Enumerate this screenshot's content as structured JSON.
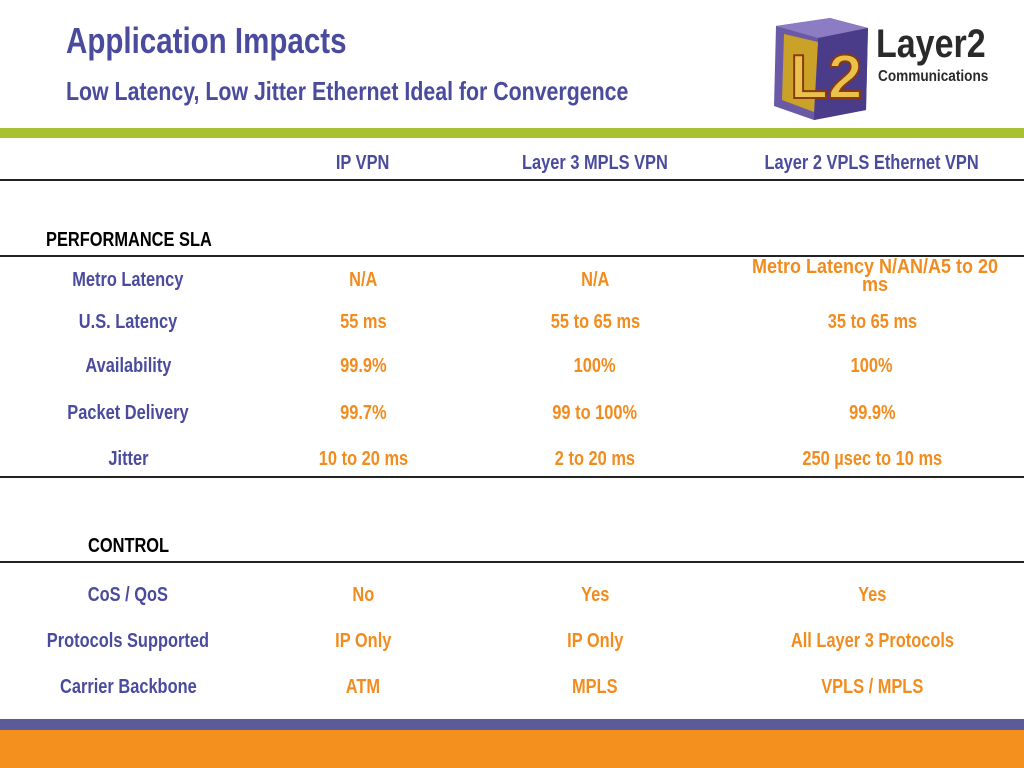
{
  "header": {
    "title": "Application Impacts",
    "subtitle": "Low Latency, Low Jitter Ethernet Ideal for Convergence"
  },
  "logo": {
    "mark": "L2",
    "word": "Layer2",
    "sub": "Communications"
  },
  "table": {
    "columns": [
      "",
      "IP VPN",
      "Layer 3 MPLS VPN",
      "Layer 2 VPLS Ethernet VPN"
    ],
    "sections": [
      {
        "heading": "PERFORMANCE SLA",
        "rows": [
          {
            "label": "Metro Latency",
            "values": [
              "N/A",
              "N/A",
              "Metro Latency N/AN/A5 to 20 ms"
            ]
          },
          {
            "label": "U.S. Latency",
            "values": [
              "55 ms",
              "55 to 65 ms",
              "35 to 65 ms"
            ]
          },
          {
            "label": "Availability",
            "values": [
              "99.9%",
              "100%",
              "100%"
            ]
          },
          {
            "label": "Packet Delivery",
            "values": [
              "99.7%",
              "99 to 100%",
              "99.9%"
            ]
          },
          {
            "label": "Jitter",
            "values": [
              "10 to 20 ms",
              "2 to 20 ms",
              "250 µsec to 10 ms"
            ]
          }
        ]
      },
      {
        "heading": "CONTROL",
        "rows": [
          {
            "label": "CoS / QoS",
            "values": [
              "No",
              "Yes",
              "Yes"
            ]
          },
          {
            "label": "Protocols Supported",
            "values": [
              "IP Only",
              "IP Only",
              "All Layer 3 Protocols"
            ]
          },
          {
            "label": "Carrier Backbone",
            "values": [
              "ATM",
              "MPLS",
              "VPLS / MPLS"
            ]
          }
        ]
      }
    ]
  },
  "colors": {
    "title_blue": "#4b4b9e",
    "value_orange": "#f28c1e",
    "rule_green": "#a6c132",
    "footer_purple": "#5b5b98",
    "footer_orange": "#f3901e"
  }
}
